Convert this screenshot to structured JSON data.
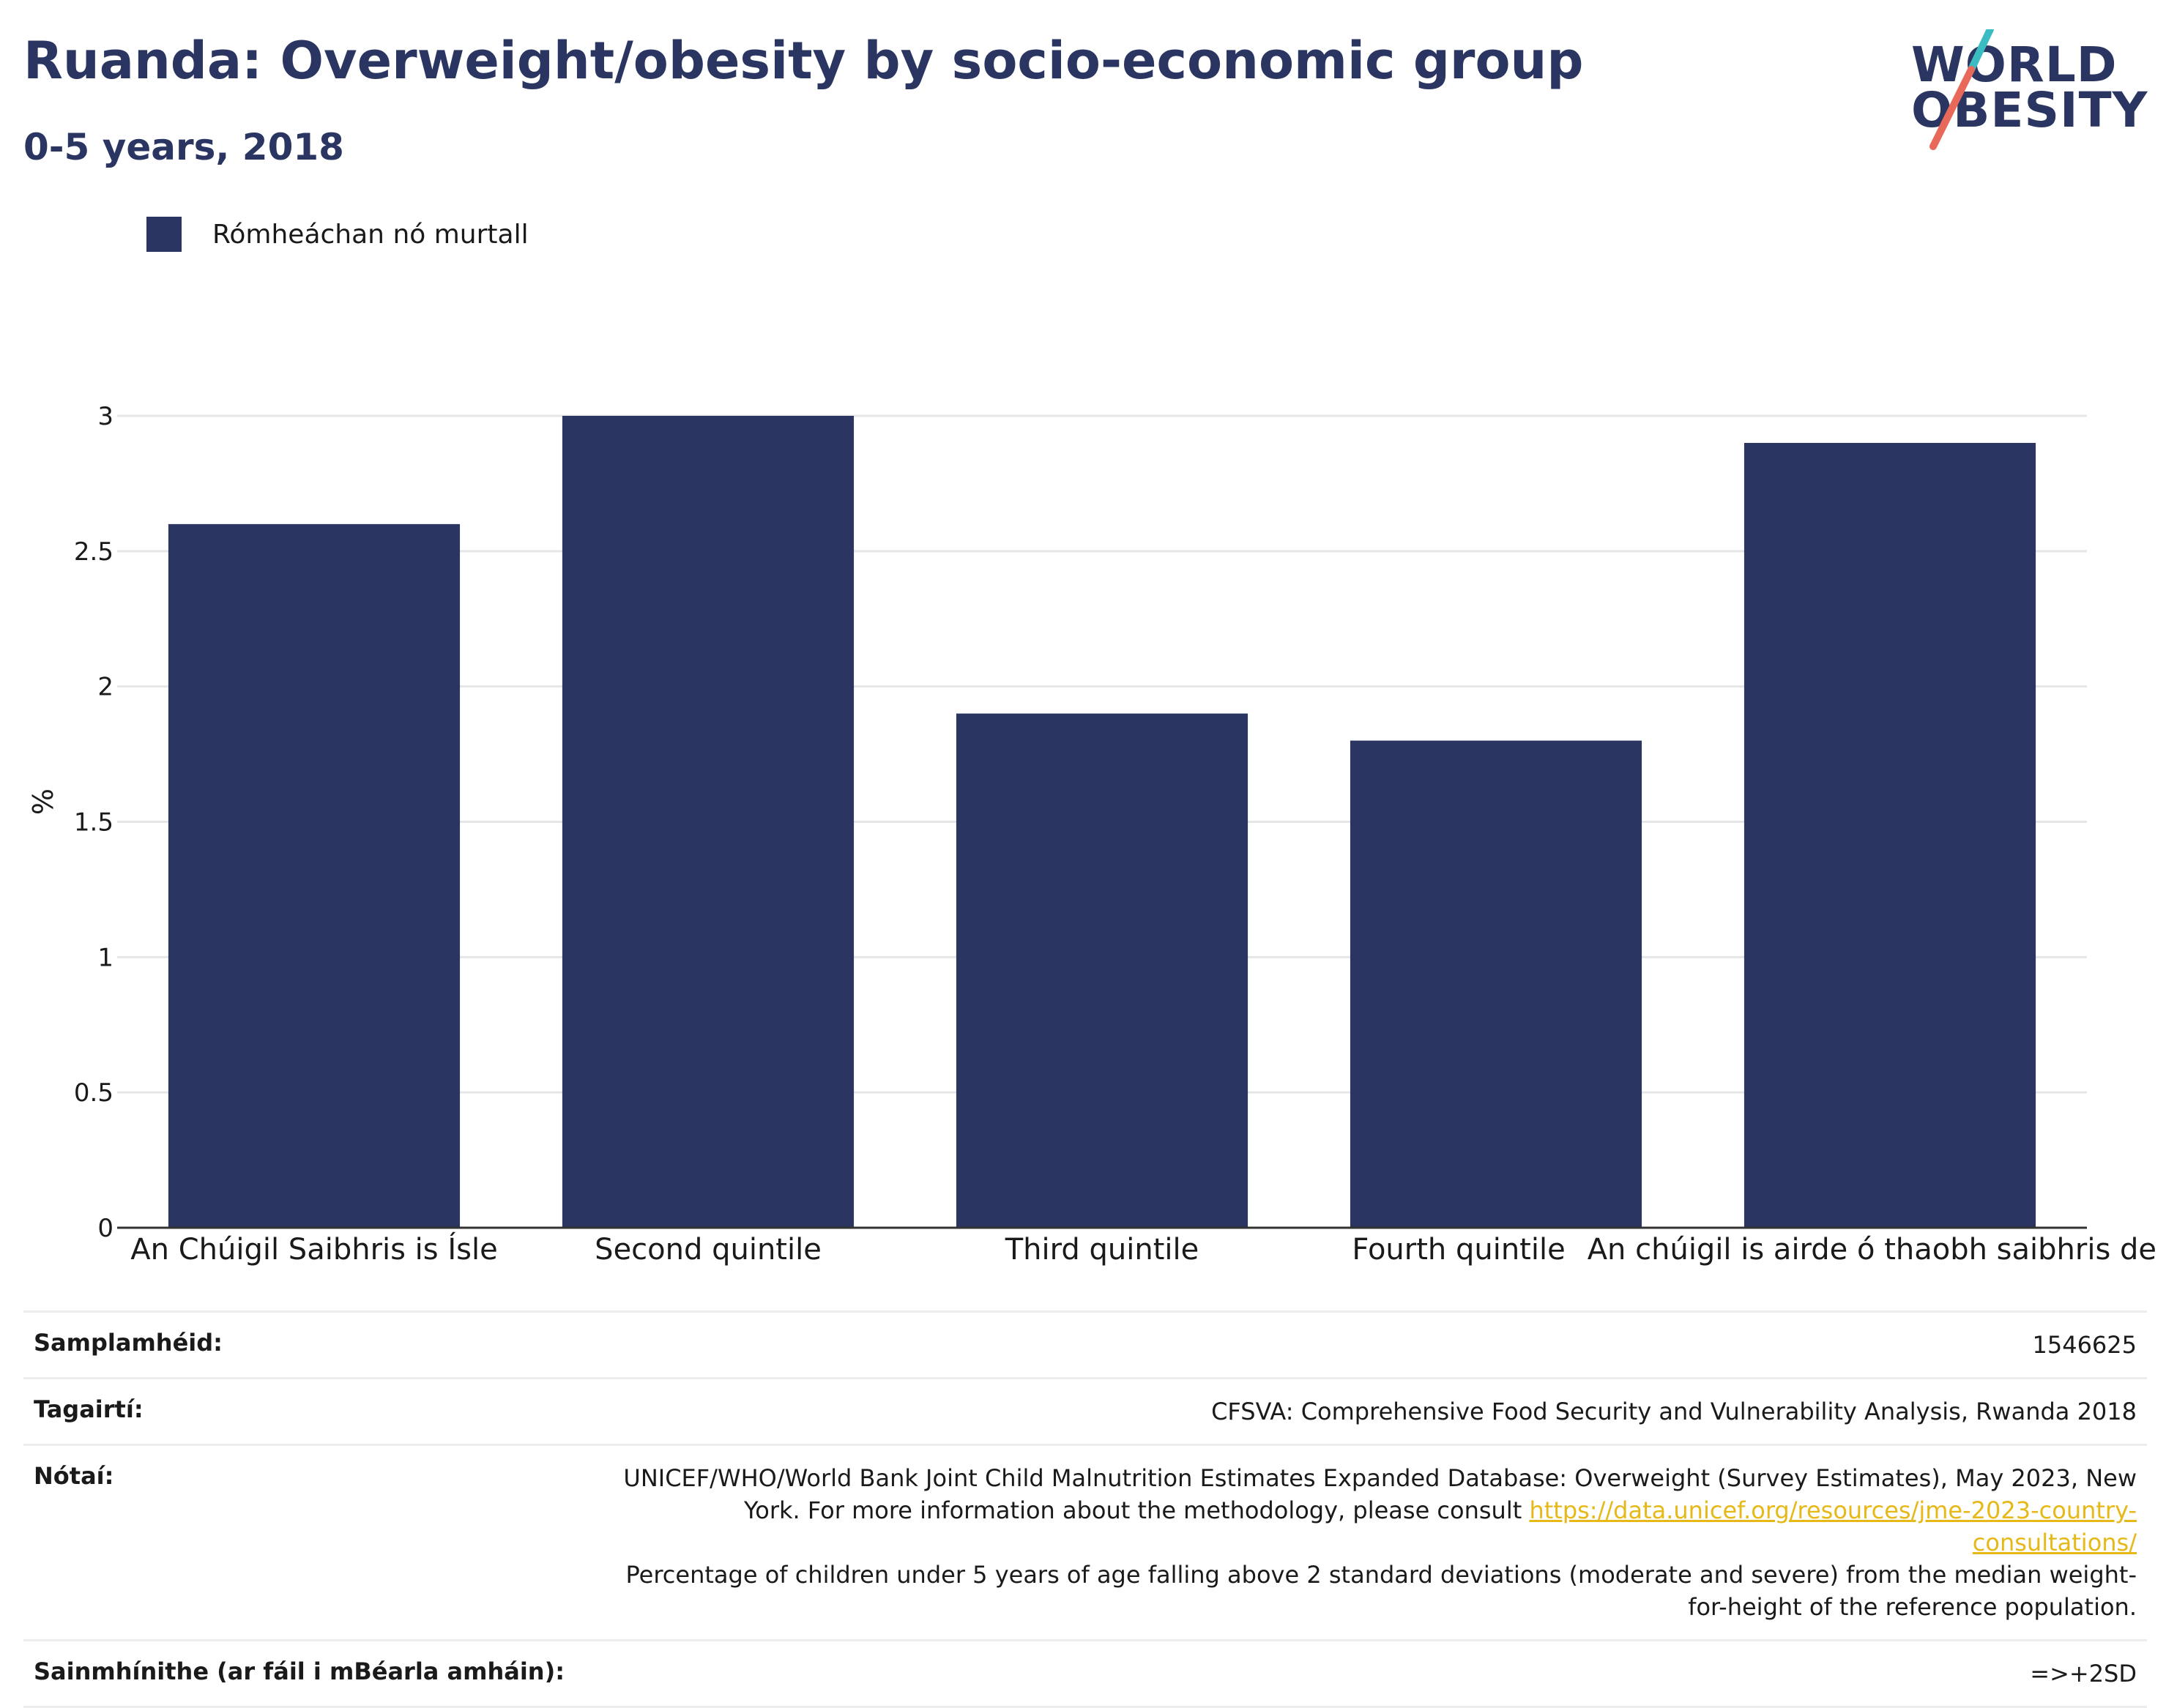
{
  "header": {
    "title": "Ruanda: Overweight/obesity by socio-economic group",
    "subtitle": "0-5 years, 2018"
  },
  "logo": {
    "line1": "WORLD",
    "line2": "OBESITY"
  },
  "legend": {
    "label": "Rómheáchan nó murtall",
    "color": "#2a3561"
  },
  "chart_data": {
    "type": "bar",
    "categories": [
      "An Chúigil Saibhris is Ísle",
      "Second quintile",
      "Third quintile",
      "Fourth quintile",
      "An chúigil is airde ó thaobh saibhris de"
    ],
    "series": [
      {
        "name": "Rómheáchan nó murtall",
        "values": [
          2.6,
          3.0,
          1.9,
          1.8,
          2.9
        ],
        "color": "#2a3561"
      }
    ],
    "ylabel": "%",
    "ylim": [
      0,
      3
    ],
    "yticks": [
      "0",
      "0.5",
      "1",
      "1.5",
      "2",
      "2.5",
      "3"
    ],
    "grid": true,
    "legend_position": "top-left"
  },
  "info": {
    "sample_label": "Samplamhéid:",
    "sample_value": "1546625",
    "refs_label": "Tagairtí:",
    "refs_value": "CFSVA: Comprehensive Food Security and Vulnerability Analysis, Rwanda 2018",
    "notes_label": "Nótaí:",
    "notes_text1": "UNICEF/WHO/World Bank Joint Child Malnutrition Estimates Expanded Database: Overweight (Survey Estimates), May 2023, New York. For more information about the methodology, please consult ",
    "notes_link": "https://data.unicef.org/resources/jme-2023-country-consultations/",
    "notes_text2": "Percentage of children under 5 years of age falling above 2 standard deviations (moderate and severe) from the median weight-for-height of the reference population.",
    "defs_label": "Sainmhínithe (ar fáil i mBéarla amháin):",
    "defs_value": "=>+2SD"
  }
}
